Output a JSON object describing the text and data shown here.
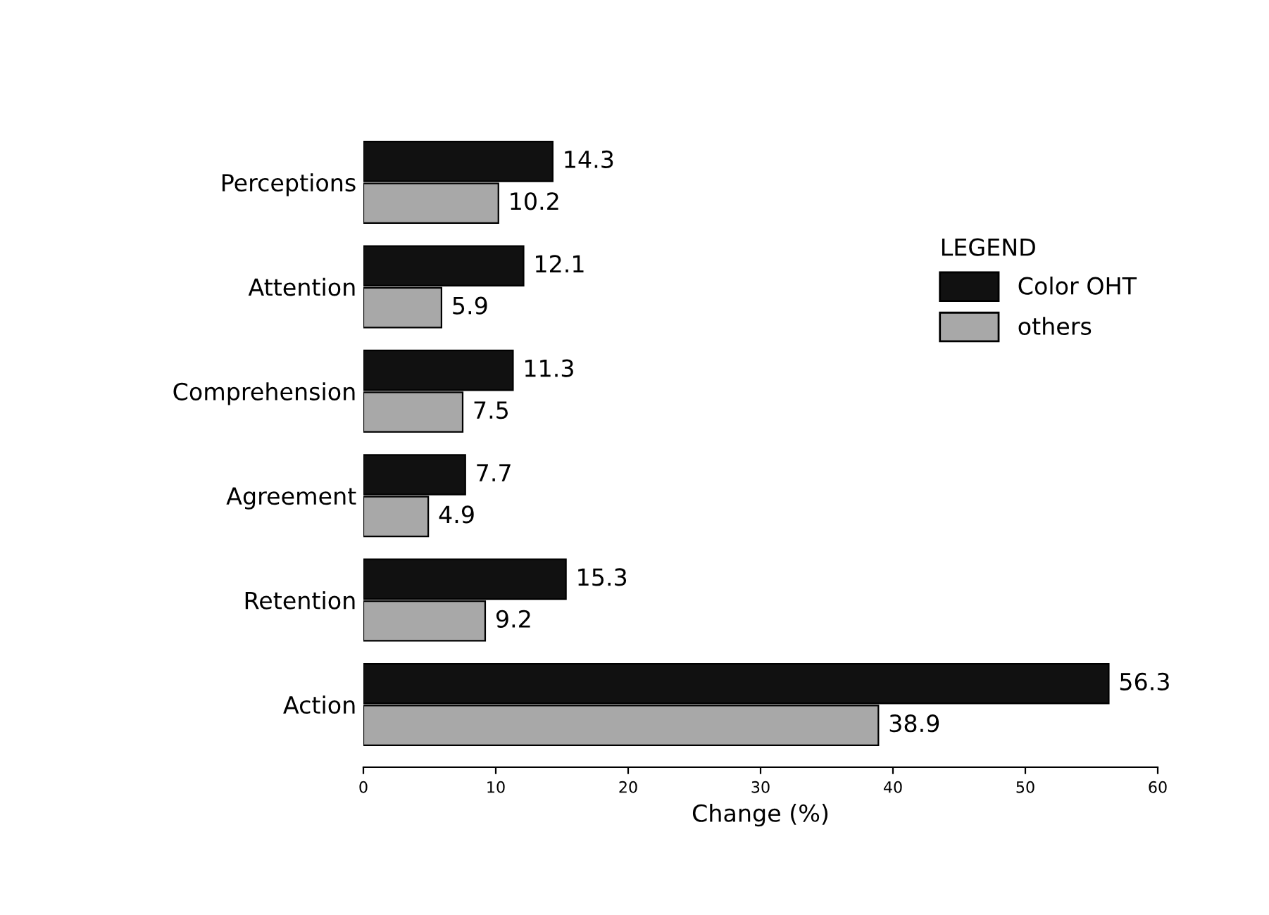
{
  "chart_data": {
    "type": "bar",
    "orientation": "horizontal",
    "xlabel": "Change (%)",
    "legend_title": "LEGEND",
    "categories": [
      "Perceptions",
      "Attention",
      "Comprehension",
      "Agreement",
      "Retention",
      "Action"
    ],
    "series": [
      {
        "name": "Color OHT",
        "color": "#111111",
        "values": [
          14.3,
          12.1,
          11.3,
          7.7,
          15.3,
          56.3
        ]
      },
      {
        "name": "others",
        "color": "#a8a8a8",
        "values": [
          10.2,
          5.9,
          7.5,
          4.9,
          9.2,
          38.9
        ]
      }
    ],
    "xlim": [
      0,
      60
    ],
    "xticks": [
      0,
      10,
      20,
      30,
      40,
      50,
      60
    ],
    "data_labels": true,
    "legend": "top right",
    "grid": false
  }
}
